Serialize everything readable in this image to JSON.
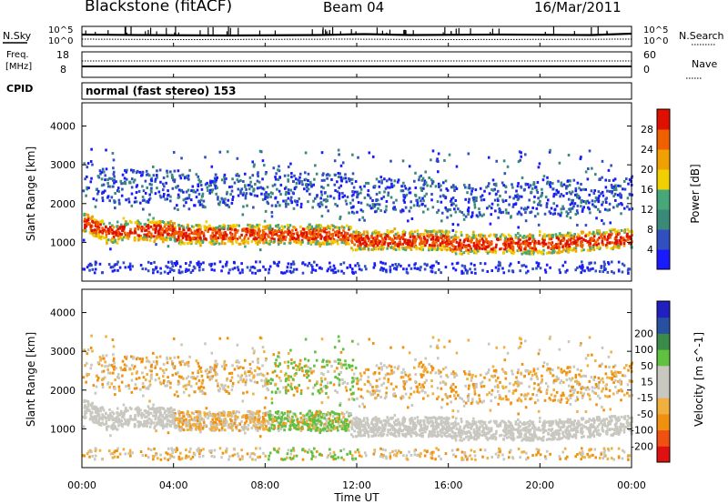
{
  "header": {
    "station": "Blackstone (fitACF)",
    "beam": "Beam 04",
    "date": "16/Mar/2011"
  },
  "colors": {
    "power_scale": [
      "#1a1aff",
      "#3050c0",
      "#3a8a7a",
      "#46a878",
      "#f0d000",
      "#f0a000",
      "#f06000",
      "#e01000"
    ],
    "velocity_scale": [
      "#e01010",
      "#f05010",
      "#f09010",
      "#f0b040",
      "#c8c8c0",
      "#c8c8c0",
      "#60c040",
      "#3a8a4a",
      "#2850a0",
      "#2020c0"
    ],
    "ground_scatter": "#c8c8c0"
  },
  "chart_data": [
    {
      "type": "line",
      "name": "noise-panel",
      "left_label": "N.Sky",
      "right_label": "N.Search",
      "left_ticks": [
        "10^5",
        "10^0"
      ],
      "right_ticks": [
        "10^5",
        "10^0"
      ]
    },
    {
      "type": "line",
      "name": "frequency-panel",
      "left_label_top": "Freq.",
      "left_label_bottom": "[MHz]",
      "left_ticks": [
        "18",
        "8"
      ],
      "right_label": "Nave",
      "right_ticks": [
        "60",
        "0"
      ]
    },
    {
      "type": "table",
      "name": "cpid-panel",
      "label": "CPID",
      "text": "normal (fast stereo) 153"
    },
    {
      "type": "heatmap",
      "name": "power-panel",
      "ylabel": "Slant Range [km]",
      "yticks": [
        1000,
        2000,
        3000,
        4000
      ],
      "ylim": [
        0,
        4600
      ],
      "colorbar_label": "Power [dB]",
      "colorbar_ticks": [
        4,
        8,
        12,
        16,
        20,
        24,
        28
      ],
      "colorbar_range": [
        0,
        32
      ]
    },
    {
      "type": "heatmap",
      "name": "velocity-panel",
      "ylabel": "Slant Range [km]",
      "yticks": [
        1000,
        2000,
        3000,
        4000
      ],
      "ylim": [
        0,
        4600
      ],
      "colorbar_label": "Velocity [m s^-1]",
      "colorbar_ticks": [
        -200,
        -100,
        -50,
        -15,
        15,
        50,
        100,
        200
      ]
    }
  ],
  "x_axis": {
    "label": "Time UT",
    "ticks": [
      "00:00",
      "04:00",
      "08:00",
      "12:00",
      "16:00",
      "20:00",
      "00:00"
    ]
  }
}
